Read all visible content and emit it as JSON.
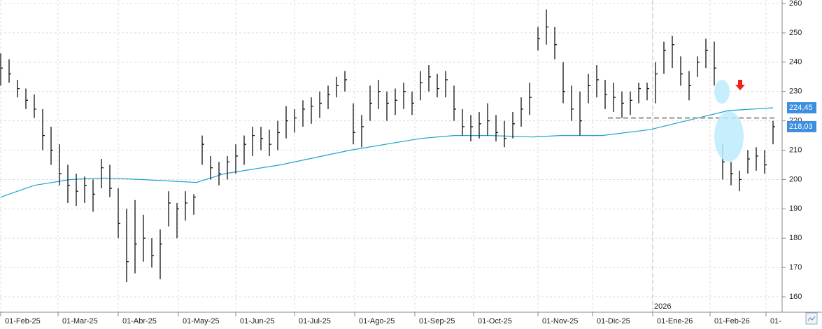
{
  "chart_data": {
    "type": "ohlc",
    "xlim": [
      0,
      278
    ],
    "ylim": [
      155,
      261.2
    ],
    "yticks": [
      160,
      170,
      180,
      190,
      200,
      210,
      220,
      230,
      240,
      250,
      260
    ],
    "xticks": [
      {
        "value": 0,
        "label": "01-Feb-25"
      },
      {
        "value": 20.5,
        "label": "01-Mar-25"
      },
      {
        "value": 42,
        "label": "01-Abr-25"
      },
      {
        "value": 63.5,
        "label": "01-May-25"
      },
      {
        "value": 84,
        "label": "01-Jun-25"
      },
      {
        "value": 105,
        "label": "01-Jul-25"
      },
      {
        "value": 126.5,
        "label": "01-Ago-25"
      },
      {
        "value": 148,
        "label": "01-Sep-25"
      },
      {
        "value": 169,
        "label": "01-Oct-25"
      },
      {
        "value": 192,
        "label": "01-Nov-25"
      },
      {
        "value": 211.5,
        "label": "01-Dic-25"
      },
      {
        "value": 233,
        "label": "01-Ene-26"
      },
      {
        "value": 253.5,
        "label": "01-Feb-26"
      },
      {
        "value": 273.5,
        "label": "01-"
      }
    ],
    "grid": true,
    "bar_color": "#111111",
    "x": [
      0,
      3,
      6,
      9,
      12,
      15,
      18,
      21,
      24,
      27,
      30,
      33,
      36,
      39,
      42,
      45,
      48,
      51,
      54,
      57,
      60,
      63,
      66,
      69,
      72,
      75,
      78,
      81,
      84,
      87,
      90,
      93,
      96,
      99,
      102,
      105,
      108,
      111,
      114,
      117,
      120,
      123,
      126,
      129,
      132,
      135,
      138,
      141,
      144,
      147,
      150,
      153,
      156,
      159,
      162,
      165,
      168,
      171,
      174,
      177,
      180,
      183,
      186,
      189,
      192,
      195,
      198,
      201,
      204,
      207,
      210,
      213,
      216,
      219,
      222,
      225,
      228,
      231,
      234,
      237,
      240,
      243,
      246,
      249,
      252,
      255,
      258,
      261,
      264,
      267,
      270,
      273,
      276
    ],
    "high": [
      243,
      241,
      234,
      231,
      229,
      224,
      218,
      212,
      205,
      202,
      201,
      200,
      207,
      205,
      197,
      190,
      193,
      188,
      180,
      183,
      196,
      192,
      196,
      195,
      215,
      208,
      206,
      208,
      212,
      215,
      218,
      218,
      217,
      220,
      225,
      224,
      227,
      228,
      230,
      232,
      235,
      237,
      226,
      222,
      232,
      234,
      230,
      231,
      233,
      230,
      237,
      239,
      236,
      237,
      232,
      224,
      222,
      223,
      226,
      222,
      220,
      223,
      228,
      233,
      252,
      258,
      252,
      240,
      232,
      230,
      236,
      239,
      234,
      233,
      230,
      230,
      233,
      233,
      240,
      247,
      249,
      242,
      237,
      242,
      248,
      247,
      212,
      206,
      203,
      210,
      211,
      210,
      220
    ],
    "low": [
      232,
      233,
      228,
      224,
      221,
      210,
      205,
      198,
      192,
      191,
      192,
      189,
      197,
      194,
      180,
      165,
      168,
      172,
      170,
      166,
      184,
      180,
      186,
      188,
      205,
      200,
      198,
      200,
      202,
      205,
      208,
      210,
      208,
      210,
      214,
      216,
      218,
      219,
      221,
      224,
      228,
      230,
      212,
      211,
      220,
      224,
      220,
      222,
      224,
      222,
      227,
      230,
      228,
      228,
      220,
      215,
      213,
      214,
      215,
      213,
      211,
      214,
      218,
      222,
      244,
      246,
      241,
      226,
      220,
      215,
      226,
      228,
      224,
      223,
      221,
      222,
      226,
      227,
      226,
      236,
      238,
      232,
      227,
      235,
      238,
      232,
      200,
      198,
      196,
      202,
      203,
      202,
      212
    ],
    "close": [
      238,
      236,
      231,
      227,
      224,
      215,
      210,
      202,
      198,
      196,
      198,
      195,
      204,
      197,
      185,
      172,
      178,
      180,
      174,
      178,
      192,
      190,
      192,
      194,
      212,
      204,
      202,
      206,
      208,
      212,
      215,
      214,
      212,
      216,
      220,
      221,
      224,
      225,
      226,
      229,
      232,
      234,
      216,
      218,
      226,
      230,
      226,
      227,
      230,
      226,
      233,
      235,
      231,
      234,
      224,
      218,
      218,
      219,
      220,
      216,
      214,
      219,
      224,
      228,
      248,
      252,
      246,
      230,
      224,
      220,
      232,
      234,
      229,
      228,
      226,
      227,
      231,
      231,
      236,
      244,
      246,
      236,
      232,
      240,
      244,
      238,
      206,
      202,
      200,
      207,
      208,
      205,
      218
    ],
    "ma": {
      "color": "#1fa3c9",
      "x": [
        0,
        12,
        25,
        37,
        50,
        70,
        80,
        100,
        125,
        150,
        162,
        175,
        190,
        200,
        215,
        232,
        245,
        260,
        276
      ],
      "values": [
        194,
        198,
        200,
        200.5,
        200,
        199,
        202,
        205,
        210,
        214,
        215,
        215,
        214.5,
        215,
        215,
        217,
        220,
        223.5,
        224.45
      ]
    },
    "reference_line": {
      "value": 221,
      "x": [
        217,
        277
      ],
      "color": "#aaaaaa"
    },
    "price_labels": [
      {
        "value": 224.45,
        "label": "224,45",
        "color": "#3c8fe0"
      },
      {
        "value": 218.03,
        "label": "218,03",
        "color": "#3c8fe0"
      }
    ],
    "year_marker": {
      "x": 233,
      "label": "2026"
    }
  }
}
